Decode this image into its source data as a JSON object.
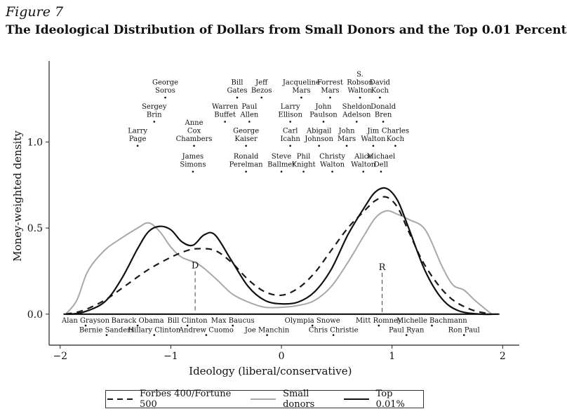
{
  "figure_label": "Figure 7",
  "chart_data": {
    "type": "line",
    "title": "The Ideological Distribution of Dollars from Small Donors and the Top 0.01 Percent",
    "xlabel": "Ideology (liberal/conservative)",
    "ylabel": "Money-weighted density",
    "xlim": [
      -2.1,
      2.15
    ],
    "ylim": [
      -0.18,
      1.47
    ],
    "xticks": [
      -2,
      -1,
      0,
      1,
      2
    ],
    "xtick_labels": [
      "−2",
      "−1",
      "0",
      "1",
      "2"
    ],
    "yticks": [
      0.0,
      0.5,
      1.0
    ],
    "ytick_labels": [
      "0.0",
      "0.5",
      "1.0"
    ],
    "grid": false,
    "legend_position": "bottom",
    "series": [
      {
        "name": "Forbes 400/Fortune 500",
        "style": "dashed",
        "color": "#1a1a1a",
        "x": [
          -1.95,
          -1.8,
          -1.6,
          -1.4,
          -1.2,
          -1.0,
          -0.85,
          -0.75,
          -0.6,
          -0.45,
          -0.3,
          -0.15,
          0.0,
          0.15,
          0.3,
          0.45,
          0.6,
          0.75,
          0.85,
          0.95,
          1.05,
          1.15,
          1.3,
          1.5,
          1.7,
          1.9
        ],
        "y": [
          0.0,
          0.02,
          0.08,
          0.17,
          0.26,
          0.33,
          0.37,
          0.38,
          0.37,
          0.3,
          0.2,
          0.13,
          0.11,
          0.15,
          0.24,
          0.37,
          0.5,
          0.6,
          0.66,
          0.68,
          0.62,
          0.48,
          0.28,
          0.11,
          0.03,
          0.0
        ]
      },
      {
        "name": "Small donors",
        "style": "solid",
        "color": "#a8a8a8",
        "x": [
          -1.95,
          -1.85,
          -1.75,
          -1.6,
          -1.45,
          -1.3,
          -1.2,
          -1.1,
          -1.0,
          -0.9,
          -0.75,
          -0.6,
          -0.45,
          -0.3,
          -0.15,
          0.0,
          0.15,
          0.3,
          0.45,
          0.6,
          0.75,
          0.85,
          0.95,
          1.05,
          1.15,
          1.3,
          1.45,
          1.55,
          1.65,
          1.75,
          1.9
        ],
        "y": [
          0.0,
          0.08,
          0.25,
          0.37,
          0.44,
          0.5,
          0.53,
          0.48,
          0.39,
          0.33,
          0.29,
          0.21,
          0.12,
          0.07,
          0.04,
          0.04,
          0.05,
          0.08,
          0.16,
          0.3,
          0.46,
          0.56,
          0.6,
          0.58,
          0.55,
          0.49,
          0.28,
          0.17,
          0.14,
          0.08,
          0.0
        ]
      },
      {
        "name": "Top 0.01%",
        "style": "solid",
        "color": "#111111",
        "x": [
          -1.95,
          -1.8,
          -1.6,
          -1.45,
          -1.3,
          -1.2,
          -1.1,
          -1.0,
          -0.9,
          -0.8,
          -0.7,
          -0.6,
          -0.45,
          -0.3,
          -0.15,
          0.0,
          0.15,
          0.3,
          0.45,
          0.6,
          0.75,
          0.85,
          0.95,
          1.05,
          1.15,
          1.3,
          1.45,
          1.6,
          1.8,
          1.95
        ],
        "y": [
          0.0,
          0.01,
          0.07,
          0.2,
          0.38,
          0.48,
          0.51,
          0.49,
          0.42,
          0.4,
          0.46,
          0.46,
          0.31,
          0.16,
          0.08,
          0.06,
          0.07,
          0.13,
          0.26,
          0.46,
          0.62,
          0.71,
          0.73,
          0.66,
          0.5,
          0.25,
          0.09,
          0.02,
          0.0,
          0.0
        ]
      }
    ],
    "markers": [
      {
        "label": "D",
        "x": -0.78,
        "y_top": 0.25
      },
      {
        "label": "R",
        "x": 0.91,
        "y_top": 0.24
      }
    ],
    "annotations_above": [
      {
        "lines": [
          "George",
          "Soros"
        ],
        "x": -1.05,
        "y": 1.27
      },
      {
        "lines": [
          "Bill",
          "Gates"
        ],
        "x": -0.4,
        "y": 1.27
      },
      {
        "lines": [
          "Jeff",
          "Bezos"
        ],
        "x": -0.18,
        "y": 1.27
      },
      {
        "lines": [
          "Jacqueline",
          "Mars"
        ],
        "x": 0.18,
        "y": 1.27
      },
      {
        "lines": [
          "Forrest",
          "Mars"
        ],
        "x": 0.44,
        "y": 1.27
      },
      {
        "lines": [
          "S.",
          "Robson",
          "Walton"
        ],
        "x": 0.71,
        "y": 1.27
      },
      {
        "lines": [
          "David",
          "Koch"
        ],
        "x": 0.89,
        "y": 1.27
      },
      {
        "lines": [
          "Sergey",
          "Brin"
        ],
        "x": -1.15,
        "y": 1.13
      },
      {
        "lines": [
          "Warren",
          "Buffet"
        ],
        "x": -0.51,
        "y": 1.13
      },
      {
        "lines": [
          "Paul",
          "Allen"
        ],
        "x": -0.29,
        "y": 1.13
      },
      {
        "lines": [
          "Larry",
          "Ellison"
        ],
        "x": 0.08,
        "y": 1.13
      },
      {
        "lines": [
          "John",
          "Paulson"
        ],
        "x": 0.38,
        "y": 1.13
      },
      {
        "lines": [
          "Sheldon",
          "Adelson"
        ],
        "x": 0.68,
        "y": 1.13
      },
      {
        "lines": [
          "Donald",
          "Bren"
        ],
        "x": 0.92,
        "y": 1.13
      },
      {
        "lines": [
          "Larry",
          "Page"
        ],
        "x": -1.3,
        "y": 0.99
      },
      {
        "lines": [
          "Anne",
          "Cox",
          "Chambers"
        ],
        "x": -0.79,
        "y": 0.99
      },
      {
        "lines": [
          "George",
          "Kaiser"
        ],
        "x": -0.32,
        "y": 0.99
      },
      {
        "lines": [
          "Carl",
          "Icahn"
        ],
        "x": 0.08,
        "y": 0.99
      },
      {
        "lines": [
          "Abigail",
          "Johnson"
        ],
        "x": 0.34,
        "y": 0.99
      },
      {
        "lines": [
          "John",
          "Mars"
        ],
        "x": 0.59,
        "y": 0.99
      },
      {
        "lines": [
          "Jim",
          "Walton"
        ],
        "x": 0.83,
        "y": 0.99
      },
      {
        "lines": [
          "Charles",
          "Koch"
        ],
        "x": 1.03,
        "y": 0.99
      },
      {
        "lines": [
          "James",
          "Simons"
        ],
        "x": -0.8,
        "y": 0.84
      },
      {
        "lines": [
          "Ronald",
          "Perelman"
        ],
        "x": -0.32,
        "y": 0.84
      },
      {
        "lines": [
          "Steve",
          "Ballmer"
        ],
        "x": 0.0,
        "y": 0.84
      },
      {
        "lines": [
          "Phil",
          "Knight"
        ],
        "x": 0.2,
        "y": 0.84
      },
      {
        "lines": [
          "Christy",
          "Walton"
        ],
        "x": 0.46,
        "y": 0.84
      },
      {
        "lines": [
          "Alice",
          "Walton"
        ],
        "x": 0.74,
        "y": 0.84
      },
      {
        "lines": [
          "Michael",
          "Dell"
        ],
        "x": 0.9,
        "y": 0.84
      }
    ],
    "annotations_below": [
      {
        "label": "Alan Grayson",
        "x": -1.77,
        "y": -0.05
      },
      {
        "label": "Bernie Sanders",
        "x": -1.58,
        "y": -0.105
      },
      {
        "label": "Barack Obama",
        "x": -1.3,
        "y": -0.05
      },
      {
        "label": "Hillary Clinton",
        "x": -1.15,
        "y": -0.105
      },
      {
        "label": "Bill Clinton",
        "x": -0.85,
        "y": -0.05
      },
      {
        "label": "Andrew Cuomo",
        "x": -0.68,
        "y": -0.105
      },
      {
        "label": "Max Baucus",
        "x": -0.44,
        "y": -0.05
      },
      {
        "label": "Joe Manchin",
        "x": -0.13,
        "y": -0.105
      },
      {
        "label": "Olympia Snowe",
        "x": 0.28,
        "y": -0.05
      },
      {
        "label": "Chris Christie",
        "x": 0.47,
        "y": -0.105
      },
      {
        "label": "Mitt Romney",
        "x": 0.88,
        "y": -0.05
      },
      {
        "label": "Paul Ryan",
        "x": 1.13,
        "y": -0.105
      },
      {
        "label": "Michelle Bachmann",
        "x": 1.36,
        "y": -0.05
      },
      {
        "label": "Ron Paul",
        "x": 1.65,
        "y": -0.105
      }
    ]
  }
}
